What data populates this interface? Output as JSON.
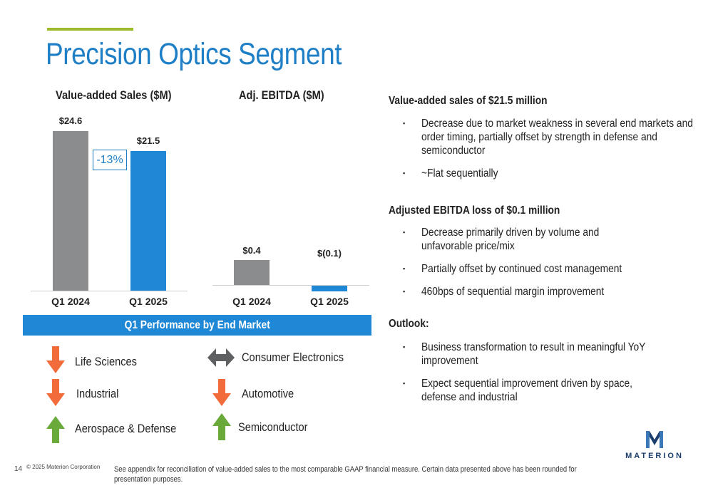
{
  "page": {
    "title": "Precision Optics Segment",
    "accent_color": "#9bbb29",
    "title_color": "#1e7fc6"
  },
  "chart_data": [
    {
      "type": "bar",
      "title": "Value-added Sales ($M)",
      "categories": [
        "Q1 2024",
        "Q1 2025"
      ],
      "values": [
        24.6,
        21.5
      ],
      "value_labels": [
        "$24.6",
        "$21.5"
      ],
      "colors": [
        "#8a8c8e",
        "#1e88d6"
      ],
      "ylim": [
        0,
        24.6
      ],
      "annotation": "-13%"
    },
    {
      "type": "bar",
      "title": "Adj. EBITDA ($M)",
      "categories": [
        "Q1 2024",
        "Q1 2025"
      ],
      "values": [
        0.4,
        -0.1
      ],
      "value_labels": [
        "$0.4",
        "$(0.1)"
      ],
      "colors": [
        "#8a8c8e",
        "#1e88d6"
      ]
    }
  ],
  "end_market": {
    "title": "Q1 Performance by End Market",
    "items": [
      {
        "label": "Life Sciences",
        "trend": "down",
        "icon": "arrow-down-icon",
        "color": "#f26b3a"
      },
      {
        "label": "Industrial",
        "trend": "down",
        "icon": "arrow-down-icon",
        "color": "#f26b3a"
      },
      {
        "label": "Aerospace & Defense",
        "trend": "up",
        "icon": "arrow-up-icon",
        "color": "#6aaa3a"
      },
      {
        "label": "Consumer Electronics",
        "trend": "flat",
        "icon": "arrow-left-right-icon",
        "color": "#5f6062"
      },
      {
        "label": "Automotive",
        "trend": "down",
        "icon": "arrow-down-icon",
        "color": "#f26b3a"
      },
      {
        "label": "Semiconductor",
        "trend": "up",
        "icon": "arrow-up-icon",
        "color": "#6aaa3a"
      }
    ]
  },
  "commentary": {
    "sales_heading": "Value-added sales of $21.5 million",
    "sales_bullets": [
      "Decrease due to market weakness in several end markets and order timing, partially offset by strength in defense and semiconductor",
      "~Flat sequentially"
    ],
    "ebitda_heading": "Adjusted EBITDA loss of $0.1 million",
    "ebitda_bullets": [
      "Decrease primarily driven by volume and unfavorable price/mix",
      "Partially offset by continued cost management",
      "460bps of sequential margin improvement"
    ],
    "outlook_heading": "Outlook:",
    "outlook_bullets": [
      "Business transformation to result in meaningful YoY improvement",
      "Expect sequential improvement driven by space, defense and industrial"
    ],
    "bullet_glyph": "▪"
  },
  "footer": {
    "page_number": "14",
    "copyright": "© 2025 Materion Corporation",
    "note": "See appendix for reconciliation of value-added sales to the most comparable GAAP financial measure. Certain data presented above has been rounded for presentation purposes.",
    "logo_text": "MATERION"
  }
}
